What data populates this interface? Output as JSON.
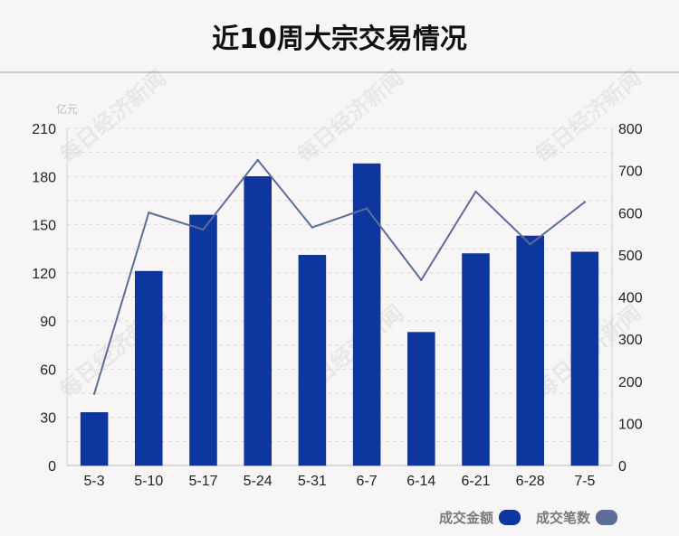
{
  "title": "近10周大宗交易情况",
  "chart_data": {
    "type": "bar+line",
    "categories": [
      "5-3",
      "5-10",
      "5-17",
      "5-24",
      "5-31",
      "6-7",
      "6-14",
      "6-21",
      "6-28",
      "7-5"
    ],
    "left_axis": {
      "unit": "亿元",
      "ylim": [
        0,
        210
      ],
      "ticks": [
        0,
        30,
        60,
        90,
        120,
        150,
        180,
        210
      ]
    },
    "right_axis": {
      "ylim": [
        0,
        800
      ],
      "ticks": [
        0,
        100,
        200,
        300,
        400,
        500,
        600,
        700,
        800
      ]
    },
    "series": [
      {
        "name": "成交金额",
        "type": "bar",
        "axis": "left",
        "color": "#0d369f",
        "values": [
          33,
          121,
          156,
          180,
          131,
          188,
          83,
          132,
          143,
          133
        ]
      },
      {
        "name": "成交笔数",
        "type": "line",
        "axis": "right",
        "color": "#5b6d98",
        "values": [
          170,
          600,
          560,
          725,
          565,
          610,
          440,
          650,
          525,
          625
        ]
      }
    ],
    "grid": "horizontal dashed",
    "legend": "bottom-right",
    "watermark": "每日经济新闻"
  }
}
